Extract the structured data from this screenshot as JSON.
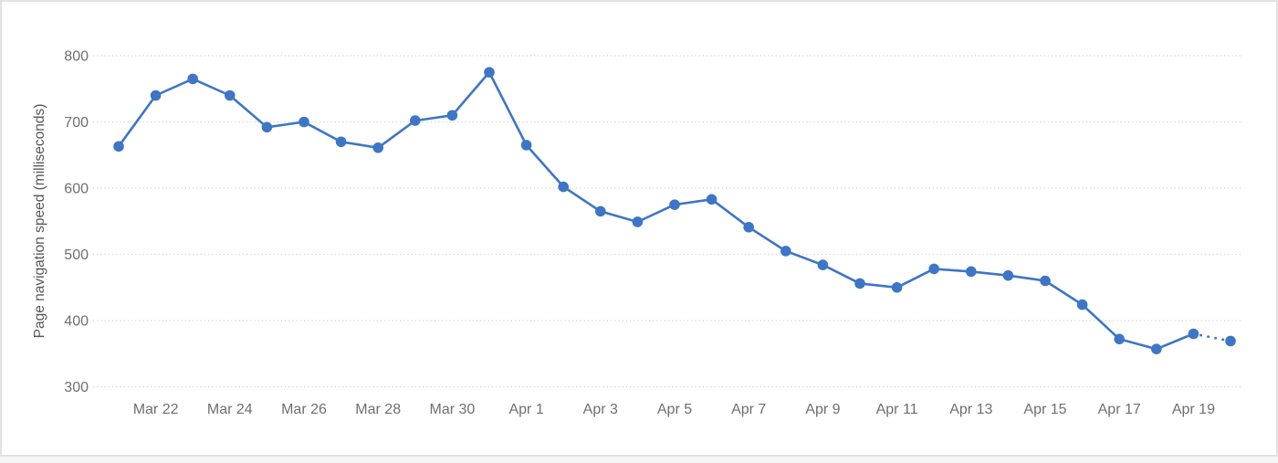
{
  "card": {
    "background_color": "#ffffff",
    "border_color": "#e2e2e2"
  },
  "chart_data": {
    "type": "line",
    "title": "",
    "xlabel": "",
    "ylabel": "Page navigation speed (milliseconds)",
    "ylim": [
      300,
      800
    ],
    "y_ticks": [
      800,
      700,
      600,
      500,
      400,
      300
    ],
    "grid": "horizontal-dotted",
    "legend": "none",
    "x_tick_labels": [
      "Mar 22",
      "Mar 24",
      "Mar 26",
      "Mar 28",
      "Mar 30",
      "Apr 1",
      "Apr 3",
      "Apr 5",
      "Apr 7",
      "Apr 9",
      "Apr 11",
      "Apr 13",
      "Apr 15",
      "Apr 17",
      "Apr 19"
    ],
    "dates": [
      "Mar 21",
      "Mar 22",
      "Mar 23",
      "Mar 24",
      "Mar 25",
      "Mar 26",
      "Mar 27",
      "Mar 28",
      "Mar 29",
      "Mar 30",
      "Mar 31",
      "Apr 1",
      "Apr 2",
      "Apr 3",
      "Apr 4",
      "Apr 5",
      "Apr 6",
      "Apr 7",
      "Apr 8",
      "Apr 9",
      "Apr 10",
      "Apr 11",
      "Apr 12",
      "Apr 13",
      "Apr 14",
      "Apr 15",
      "Apr 16",
      "Apr 17",
      "Apr 18",
      "Apr 19",
      "Apr 20"
    ],
    "series": [
      {
        "name": "Page navigation speed",
        "values": [
          663,
          740,
          765,
          740,
          692,
          700,
          670,
          661,
          702,
          710,
          775,
          665,
          602,
          565,
          549,
          575,
          583,
          541,
          505,
          484,
          456,
          450,
          478,
          474,
          468,
          460,
          424,
          372,
          357,
          380,
          369
        ],
        "color": "#3d76c6",
        "marker": "circle",
        "last_segment_style": "dotted"
      }
    ],
    "colors": {
      "line": "#3d76c6",
      "grid": "#d2d2d2",
      "tick_label": "#6f6f6f",
      "axis_title": "#565656"
    }
  }
}
